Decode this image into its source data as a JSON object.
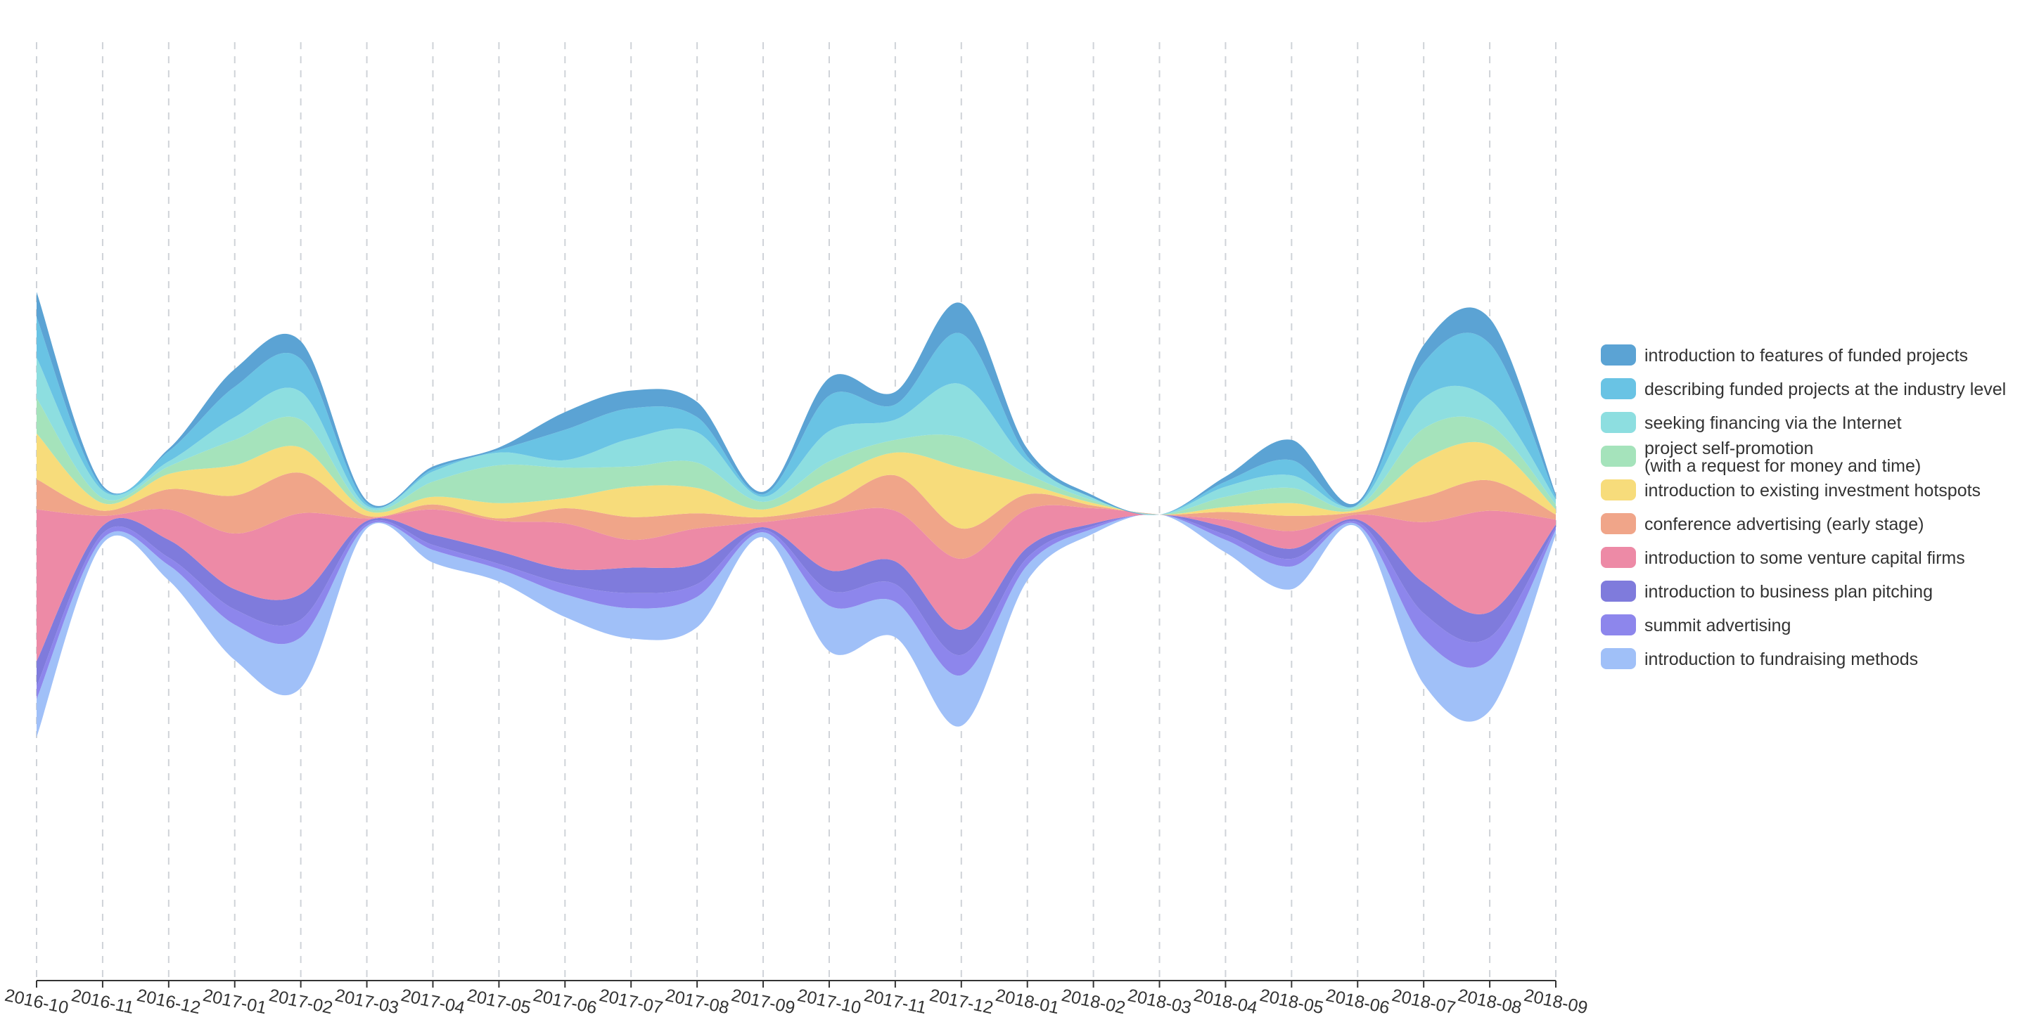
{
  "chart_data": {
    "type": "area",
    "subtype": "themeriver",
    "title": "",
    "xlabel": "",
    "ylabel": "",
    "grid": true,
    "legend_position": "right",
    "categories": [
      "2016-10",
      "2016-11",
      "2016-12",
      "2017-01",
      "2017-02",
      "2017-03",
      "2017-04",
      "2017-05",
      "2017-06",
      "2017-07",
      "2017-08",
      "2017-09",
      "2017-10",
      "2017-11",
      "2017-12",
      "2018-01",
      "2018-02",
      "2018-03",
      "2018-04",
      "2018-05",
      "2018-06",
      "2018-07",
      "2018-08",
      "2018-09"
    ],
    "series": [
      {
        "name": "introduction to features of funded projects",
        "color": "#5ba3d4",
        "values": [
          10,
          1,
          1,
          7,
          7,
          1,
          1,
          1,
          7,
          7,
          6,
          1,
          7,
          5,
          12,
          3,
          1,
          0,
          2,
          8,
          1,
          7,
          10,
          1
        ]
      },
      {
        "name": "describing funded projects at the industry level",
        "color": "#69c3e4",
        "values": [
          16,
          1,
          4,
          12,
          13,
          1,
          1,
          1,
          12,
          12,
          6,
          1,
          14,
          6,
          20,
          2,
          0,
          0,
          2,
          6,
          0,
          14,
          22,
          1
        ]
      },
      {
        "name": "seeking financing via the Internet",
        "color": "#8ddee0",
        "values": [
          16,
          3,
          2,
          9,
          11,
          1,
          4,
          5,
          3,
          11,
          12,
          2,
          12,
          8,
          21,
          5,
          1,
          0,
          4,
          5,
          1,
          12,
          10,
          2
        ]
      },
      {
        "name": "project self-promotion\n(with a request for money and time)",
        "color": "#a5e3bb",
        "values": [
          14,
          2,
          3,
          10,
          11,
          1,
          6,
          15,
          12,
          8,
          10,
          3,
          7,
          5,
          12,
          4,
          1,
          0,
          4,
          6,
          1,
          12,
          8,
          2
        ]
      },
      {
        "name": "introduction to existing investment hotspots",
        "color": "#f7dc7b",
        "values": [
          18,
          3,
          6,
          12,
          10,
          2,
          3,
          6,
          4,
          12,
          10,
          3,
          10,
          9,
          24,
          4,
          1,
          0,
          2,
          5,
          1,
          15,
          14,
          2
        ]
      },
      {
        "name": "conference advertising (early stage)",
        "color": "#f0a589",
        "values": [
          12,
          2,
          8,
          15,
          16,
          1,
          2,
          1,
          6,
          9,
          6,
          2,
          4,
          14,
          12,
          6,
          1,
          0,
          3,
          6,
          1,
          10,
          12,
          2
        ]
      },
      {
        "name": "introduction to some venture capital firms",
        "color": "#ed8aa6",
        "values": [
          60,
          4,
          12,
          22,
          32,
          1,
          10,
          12,
          18,
          11,
          14,
          2,
          22,
          20,
          28,
          15,
          6,
          0,
          3,
          7,
          2,
          24,
          40,
          2
        ]
      },
      {
        "name": "introduction to business plan pitching",
        "color": "#7f7bdc",
        "values": [
          10,
          3,
          7,
          8,
          10,
          1,
          4,
          5,
          6,
          10,
          8,
          1,
          8,
          9,
          10,
          4,
          1,
          0,
          3,
          4,
          1,
          12,
          10,
          1
        ]
      },
      {
        "name": "summit advertising",
        "color": "#8d86ec",
        "values": [
          5,
          2,
          3,
          6,
          7,
          1,
          2,
          2,
          4,
          6,
          5,
          1,
          6,
          7,
          8,
          3,
          1,
          0,
          2,
          3,
          1,
          10,
          9,
          1
        ]
      },
      {
        "name": "introduction to fundraising methods",
        "color": "#a0c0f8",
        "values": [
          15,
          2,
          6,
          14,
          20,
          1,
          5,
          5,
          9,
          12,
          12,
          2,
          18,
          14,
          20,
          6,
          2,
          0,
          5,
          9,
          1,
          18,
          20,
          2
        ]
      }
    ]
  }
}
